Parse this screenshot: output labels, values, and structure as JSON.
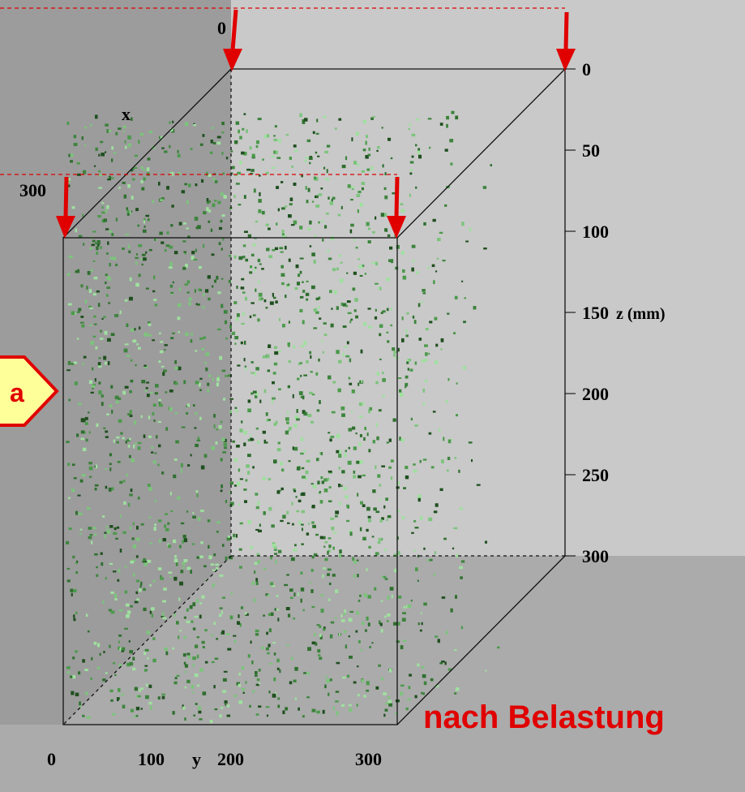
{
  "axes": {
    "x_label": "x",
    "y_label": "y",
    "z_label": "z (mm)",
    "x_ticks": [
      0,
      300
    ],
    "y_ticks": [
      0,
      100,
      200,
      300
    ],
    "z_ticks": [
      0,
      50,
      100,
      150,
      200,
      250,
      300
    ]
  },
  "marker": "a",
  "caption": "nach Belastung"
}
